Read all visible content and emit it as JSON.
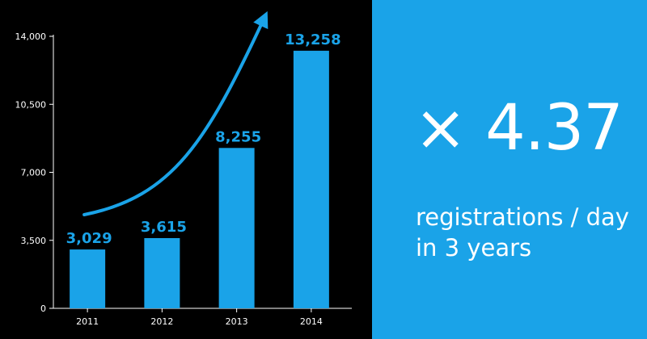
{
  "chart_data": {
    "type": "bar",
    "categories": [
      "2011",
      "2012",
      "2013",
      "2014"
    ],
    "values": [
      3029,
      3615,
      8255,
      13258
    ],
    "value_labels": [
      "3,029",
      "3,615",
      "8,255",
      "13,258"
    ],
    "yticks": [
      0,
      3500,
      7000,
      10500,
      14000
    ],
    "ytick_labels": [
      "0",
      "3,500",
      "7,000",
      "10,500",
      "14,000"
    ],
    "ylim": [
      0,
      14000
    ],
    "grid": false,
    "trend_arrow": true
  },
  "stat": {
    "multiplier": "× 4.37",
    "caption_line1": "registrations / day",
    "caption_line2": "in 3 years"
  },
  "colors": {
    "bar": "#1aa3e8",
    "value_label": "#1aa3e8",
    "arrow": "#1aa3e8",
    "axis": "#ffffff",
    "chart_background": "#000000",
    "stat_background": "#1aa3e8",
    "stat_text": "#ffffff"
  }
}
